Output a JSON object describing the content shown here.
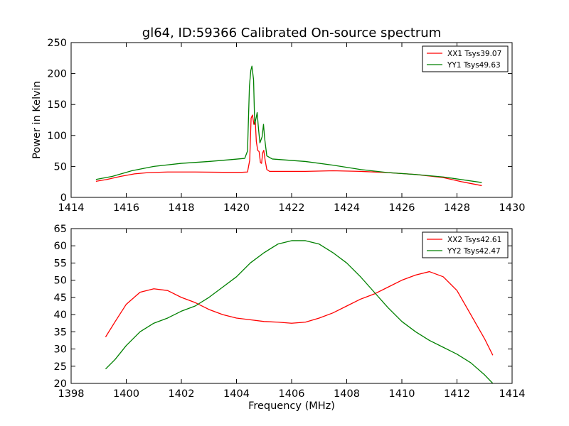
{
  "chart_data": [
    {
      "type": "line",
      "title": "gl64, ID:59366 Calibrated On-source spectrum",
      "xlabel": "",
      "ylabel": "Power in Kelvin",
      "xlim": [
        1414,
        1430
      ],
      "ylim": [
        0,
        250
      ],
      "xticks": [
        "1414",
        "1416",
        "1418",
        "1420",
        "1422",
        "1424",
        "1426",
        "1428",
        "1430"
      ],
      "yticks": [
        "0",
        "50",
        "100",
        "150",
        "200",
        "250"
      ],
      "grid": false,
      "legend": "top-right",
      "series": [
        {
          "name": "XX1 Tsys39.07",
          "color": "#ff0000",
          "points": [
            [
              1414.9,
              26
            ],
            [
              1415.3,
              29
            ],
            [
              1415.8,
              34
            ],
            [
              1416.3,
              38
            ],
            [
              1416.8,
              40
            ],
            [
              1417.5,
              41
            ],
            [
              1418.5,
              41
            ],
            [
              1419.5,
              40.5
            ],
            [
              1420.2,
              40.5
            ],
            [
              1420.4,
              41
            ],
            [
              1420.48,
              60
            ],
            [
              1420.53,
              128
            ],
            [
              1420.58,
              133
            ],
            [
              1420.63,
              118
            ],
            [
              1420.68,
              125
            ],
            [
              1420.72,
              90
            ],
            [
              1420.77,
              76
            ],
            [
              1420.82,
              74
            ],
            [
              1420.87,
              56
            ],
            [
              1420.91,
              55
            ],
            [
              1420.95,
              72
            ],
            [
              1420.99,
              76
            ],
            [
              1421.04,
              60
            ],
            [
              1421.1,
              45
            ],
            [
              1421.2,
              42
            ],
            [
              1422.5,
              42
            ],
            [
              1423.5,
              43
            ],
            [
              1424.5,
              42
            ],
            [
              1425.5,
              40
            ],
            [
              1426.5,
              37
            ],
            [
              1427.5,
              32
            ],
            [
              1428.2,
              25
            ],
            [
              1428.9,
              19
            ]
          ]
        },
        {
          "name": "YY1 Tsys49.63",
          "color": "#008000",
          "points": [
            [
              1414.9,
              29
            ],
            [
              1415.5,
              34
            ],
            [
              1416.2,
              43
            ],
            [
              1417,
              50
            ],
            [
              1418,
              55
            ],
            [
              1419,
              58
            ],
            [
              1419.8,
              61
            ],
            [
              1420.3,
              63
            ],
            [
              1420.4,
              75
            ],
            [
              1420.47,
              180
            ],
            [
              1420.52,
              205
            ],
            [
              1420.56,
              212
            ],
            [
              1420.62,
              190
            ],
            [
              1420.66,
              118
            ],
            [
              1420.72,
              130
            ],
            [
              1420.75,
              137
            ],
            [
              1420.8,
              110
            ],
            [
              1420.85,
              88
            ],
            [
              1420.93,
              98
            ],
            [
              1420.98,
              118
            ],
            [
              1421.02,
              96
            ],
            [
              1421.1,
              67
            ],
            [
              1421.3,
              62
            ],
            [
              1422.5,
              58
            ],
            [
              1423.5,
              52
            ],
            [
              1424.5,
              45
            ],
            [
              1425.5,
              40
            ],
            [
              1426.5,
              37
            ],
            [
              1427.5,
              33
            ],
            [
              1428.9,
              24
            ]
          ]
        }
      ]
    },
    {
      "type": "line",
      "title": "",
      "xlabel": "Frequency (MHz)",
      "ylabel": "",
      "xlim": [
        1398,
        1414
      ],
      "ylim": [
        20,
        65
      ],
      "xticks": [
        "1398",
        "1400",
        "1402",
        "1404",
        "1406",
        "1408",
        "1410",
        "1412",
        "1414"
      ],
      "yticks": [
        "20",
        "25",
        "30",
        "35",
        "40",
        "45",
        "50",
        "55",
        "60",
        "65"
      ],
      "grid": false,
      "legend": "top-right",
      "series": [
        {
          "name": "XX2 Tsys42.61",
          "color": "#ff0000",
          "points": [
            [
              1399.25,
              33.5
            ],
            [
              1399.6,
              38
            ],
            [
              1400,
              43
            ],
            [
              1400.5,
              46.5
            ],
            [
              1401,
              47.5
            ],
            [
              1401.5,
              47
            ],
            [
              1402,
              45
            ],
            [
              1402.5,
              43.5
            ],
            [
              1403,
              41.5
            ],
            [
              1403.5,
              40
            ],
            [
              1404,
              39
            ],
            [
              1404.5,
              38.5
            ],
            [
              1405,
              38
            ],
            [
              1405.5,
              37.8
            ],
            [
              1406,
              37.5
            ],
            [
              1406.5,
              37.8
            ],
            [
              1407,
              39
            ],
            [
              1407.5,
              40.5
            ],
            [
              1408,
              42.5
            ],
            [
              1408.5,
              44.5
            ],
            [
              1409,
              46
            ],
            [
              1409.5,
              48
            ],
            [
              1410,
              50
            ],
            [
              1410.5,
              51.5
            ],
            [
              1411,
              52.5
            ],
            [
              1411.5,
              51
            ],
            [
              1412,
              47
            ],
            [
              1412.5,
              40
            ],
            [
              1413,
              33
            ],
            [
              1413.3,
              28.2
            ]
          ]
        },
        {
          "name": "YY2 Tsys42.47",
          "color": "#008000",
          "points": [
            [
              1399.25,
              24.2
            ],
            [
              1399.6,
              27
            ],
            [
              1400,
              31
            ],
            [
              1400.5,
              35
            ],
            [
              1401,
              37.5
            ],
            [
              1401.5,
              39
            ],
            [
              1402,
              41
            ],
            [
              1402.5,
              42.5
            ],
            [
              1403,
              45
            ],
            [
              1403.5,
              48
            ],
            [
              1404,
              51
            ],
            [
              1404.5,
              55
            ],
            [
              1405,
              58
            ],
            [
              1405.5,
              60.5
            ],
            [
              1406,
              61.5
            ],
            [
              1406.5,
              61.5
            ],
            [
              1407,
              60.5
            ],
            [
              1407.5,
              58
            ],
            [
              1408,
              55
            ],
            [
              1408.5,
              51
            ],
            [
              1409,
              46.5
            ],
            [
              1409.5,
              42
            ],
            [
              1410,
              38
            ],
            [
              1410.5,
              35
            ],
            [
              1411,
              32.5
            ],
            [
              1411.5,
              30.5
            ],
            [
              1412,
              28.5
            ],
            [
              1412.5,
              26
            ],
            [
              1413,
              22.5
            ],
            [
              1413.3,
              20
            ]
          ]
        }
      ]
    }
  ]
}
